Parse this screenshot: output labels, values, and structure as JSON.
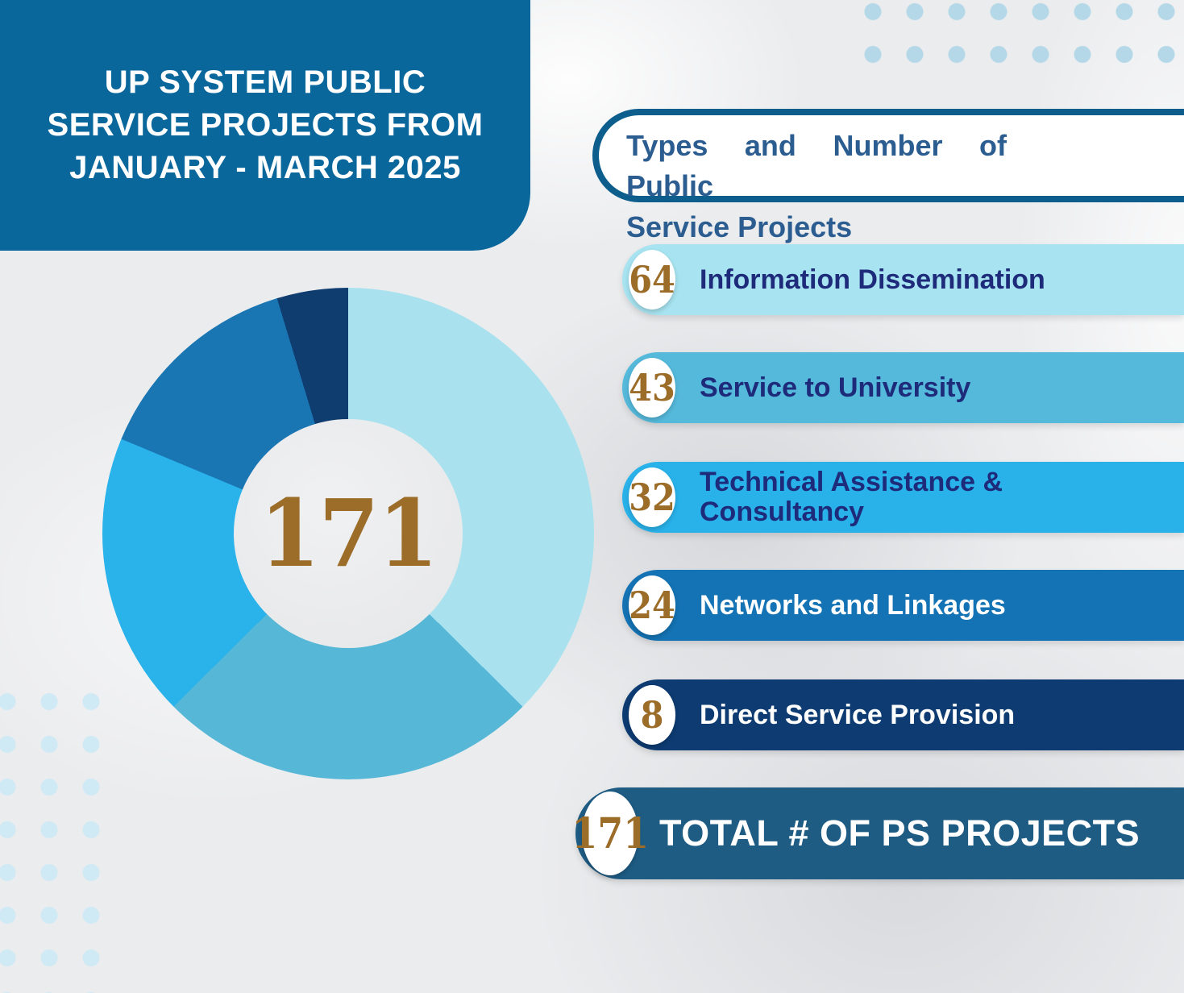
{
  "header": {
    "title_lines": [
      "UP SYSTEM PUBLIC",
      "SERVICE PROJECTS FROM",
      "JANUARY - MARCH 2025"
    ]
  },
  "section": {
    "lines": [
      "Types and Number of Public",
      "Service Projects"
    ]
  },
  "items": [
    {
      "count": "64",
      "label": "Information Dissemination",
      "bar_color": "#a7e3f0",
      "label_color": "#1d2b7a"
    },
    {
      "count": "43",
      "label": "Service to University",
      "bar_color": "#55b9db",
      "label_color": "#1d2b7a"
    },
    {
      "count": "32",
      "label": "Technical Assistance & Consultancy",
      "bar_color": "#29b2ea",
      "label_color": "#1d2b7a"
    },
    {
      "count": "24",
      "label": "Networks and Linkages",
      "bar_color": "#1473b4",
      "label_color": "#ffffff"
    },
    {
      "count": "8",
      "label": "Direct Service Provision",
      "bar_color": "#0d3b72",
      "label_color": "#ffffff"
    }
  ],
  "total": {
    "count": "171",
    "label": "TOTAL # OF PS PROJECTS",
    "bar_color": "#1e5c84"
  },
  "chart_data": {
    "type": "pie",
    "donut": true,
    "title": "Types and Number of Public Service Projects",
    "center_label": "171",
    "total": 171,
    "start_angle_deg": 0,
    "direction": "clockwise",
    "segments": [
      {
        "label": "Information Dissemination",
        "value": 64,
        "color": "#a9e2ee"
      },
      {
        "label": "Service to University",
        "value": 43,
        "color": "#57b7d7"
      },
      {
        "label": "Technical Assistance & Consultancy",
        "value": 32,
        "color": "#2ab2ea"
      },
      {
        "label": "Networks and Linkages",
        "value": 24,
        "color": "#1a75b3"
      },
      {
        "label": "Direct Service Provision",
        "value": 8,
        "color": "#0f3d6f"
      }
    ]
  },
  "colors": {
    "header_bg": "#0a679c",
    "section_border": "#0d5e8c",
    "section_text": "#2b5d90",
    "gold": "#9c6d28",
    "dot_top": "#b5d8e8",
    "dot_bottom": "#cfe9f5",
    "hole_bg": "#e8e9eb"
  }
}
